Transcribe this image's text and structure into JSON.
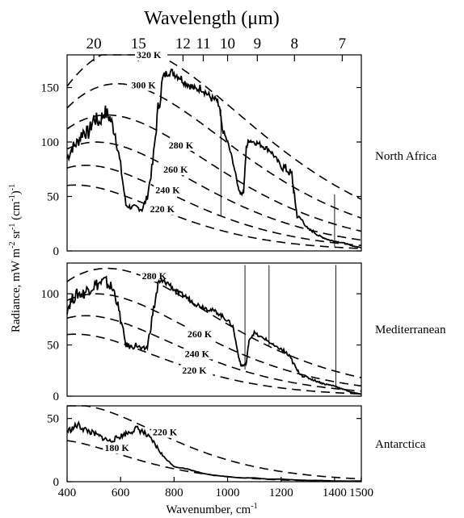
{
  "chart_data": [
    {
      "type": "line",
      "region": "North Africa",
      "top_axis": {
        "label_main": "Wavelength (",
        "label_unit": "μm",
        "label_close": ")",
        "ticks": [
          {
            "label": "20",
            "wavelength_um": 20
          },
          {
            "label": "15",
            "wavelength_um": 15
          },
          {
            "label": "12",
            "wavelength_um": 12
          },
          {
            "label": "11",
            "wavelength_um": 11
          },
          {
            "label": "10",
            "wavelength_um": 10
          },
          {
            "label": "9",
            "wavelength_um": 9
          },
          {
            "label": "8",
            "wavelength_um": 8
          },
          {
            "label": "7",
            "wavelength_um": 7
          }
        ]
      },
      "xlim": [
        400,
        1500
      ],
      "ylim": [
        0,
        180
      ],
      "yticks": [
        0,
        50,
        100,
        150
      ],
      "blackbody_labels": [
        {
          "text": "320 K",
          "temp": 320
        },
        {
          "text": "300 K",
          "temp": 300
        },
        {
          "text": "280 K",
          "temp": 280
        },
        {
          "text": "260 K",
          "temp": 260
        },
        {
          "text": "240 K",
          "temp": 240
        },
        {
          "text": "220 K",
          "temp": 220
        }
      ],
      "spectrum": {
        "x": [
          400,
          420,
          440,
          460,
          480,
          500,
          520,
          540,
          560,
          580,
          600,
          620,
          640,
          660,
          680,
          700,
          720,
          740,
          760,
          780,
          800,
          820,
          840,
          860,
          880,
          900,
          920,
          940,
          960,
          970,
          980,
          1000,
          1020,
          1040,
          1050,
          1060,
          1070,
          1080,
          1100,
          1120,
          1140,
          1160,
          1180,
          1200,
          1220,
          1240,
          1250,
          1260,
          1280,
          1300,
          1320,
          1340,
          1360,
          1380,
          1400,
          1420,
          1440,
          1460,
          1480,
          1500
        ],
        "y": [
          85,
          95,
          100,
          110,
          108,
          122,
          118,
          128,
          122,
          108,
          78,
          42,
          40,
          40,
          38,
          50,
          80,
          130,
          160,
          165,
          163,
          160,
          155,
          152,
          148,
          150,
          145,
          140,
          138,
          130,
          112,
          100,
          82,
          58,
          52,
          55,
          95,
          102,
          100,
          98,
          95,
          92,
          85,
          78,
          75,
          70,
          50,
          32,
          28,
          20,
          18,
          14,
          12,
          10,
          9,
          8,
          7,
          5,
          4,
          3
        ]
      },
      "spikes": [
        {
          "x": 975,
          "y_from": 130,
          "y_to": 32
        },
        {
          "x": 1400,
          "y_from": 52,
          "y_to": 4
        }
      ]
    },
    {
      "type": "line",
      "region": "Mediterranean",
      "xlim": [
        400,
        1500
      ],
      "ylim": [
        0,
        130
      ],
      "yticks": [
        0,
        50,
        100
      ],
      "blackbody_labels": [
        {
          "text": "280 K",
          "temp": 280
        },
        {
          "text": "260 K",
          "temp": 260
        },
        {
          "text": "240 K",
          "temp": 240
        },
        {
          "text": "220 K",
          "temp": 220
        }
      ],
      "spectrum": {
        "x": [
          400,
          420,
          440,
          460,
          480,
          500,
          520,
          540,
          560,
          580,
          600,
          620,
          640,
          660,
          680,
          700,
          720,
          740,
          760,
          780,
          800,
          820,
          840,
          860,
          880,
          900,
          920,
          940,
          960,
          980,
          1000,
          1020,
          1040,
          1050,
          1060,
          1070,
          1080,
          1100,
          1120,
          1140,
          1160,
          1180,
          1200,
          1220,
          1240,
          1260,
          1280,
          1300,
          1320,
          1340,
          1360,
          1380,
          1400,
          1420,
          1440,
          1460,
          1480,
          1500
        ],
        "y": [
          85,
          95,
          100,
          100,
          105,
          108,
          110,
          112,
          108,
          100,
          75,
          50,
          48,
          50,
          45,
          48,
          80,
          108,
          112,
          110,
          104,
          100,
          98,
          94,
          90,
          88,
          86,
          84,
          82,
          78,
          74,
          68,
          40,
          30,
          30,
          32,
          55,
          62,
          58,
          56,
          52,
          48,
          46,
          42,
          35,
          25,
          20,
          18,
          16,
          14,
          12,
          11,
          10,
          8,
          6,
          4,
          3,
          2
        ]
      },
      "spikes": [
        {
          "x": 1065,
          "y_from": 128,
          "y_to": 26
        },
        {
          "x": 1155,
          "y_from": 128,
          "y_to": 48
        },
        {
          "x": 1405,
          "y_from": 128,
          "y_to": 8
        }
      ]
    },
    {
      "type": "line",
      "region": "Antarctica",
      "xlim": [
        400,
        1500
      ],
      "ylim": [
        0,
        60
      ],
      "yticks": [
        0,
        50
      ],
      "xticks": [
        400,
        600,
        800,
        1000,
        1200,
        1400,
        1500
      ],
      "xlabel_main": "Wavenumber, cm",
      "xlabel_sup": "-1",
      "blackbody_labels": [
        {
          "text": "220 K",
          "temp": 220
        },
        {
          "text": "180 K",
          "temp": 180
        }
      ],
      "spectrum": {
        "x": [
          400,
          420,
          440,
          460,
          480,
          500,
          520,
          540,
          560,
          580,
          600,
          620,
          640,
          660,
          680,
          700,
          720,
          740,
          760,
          780,
          800,
          850,
          900,
          950,
          1000,
          1050,
          1100,
          1150,
          1200,
          1250,
          1300,
          1350,
          1400,
          1450,
          1500
        ],
        "y": [
          40,
          42,
          45,
          42,
          40,
          38,
          36,
          34,
          32,
          34,
          36,
          38,
          40,
          42,
          40,
          36,
          32,
          26,
          20,
          16,
          12,
          10,
          7,
          5,
          4,
          3,
          3,
          2,
          2,
          1.5,
          1,
          1,
          0.5,
          0.5,
          0.5
        ]
      },
      "spikes": []
    }
  ],
  "shared_ylabel": {
    "pre": "Radiance, mW m",
    "s1": "-2",
    "mid": " sr",
    "s2": "-1",
    "mid2": " (cm",
    "s3": "-1",
    "post": ")",
    "s4": "-1"
  }
}
